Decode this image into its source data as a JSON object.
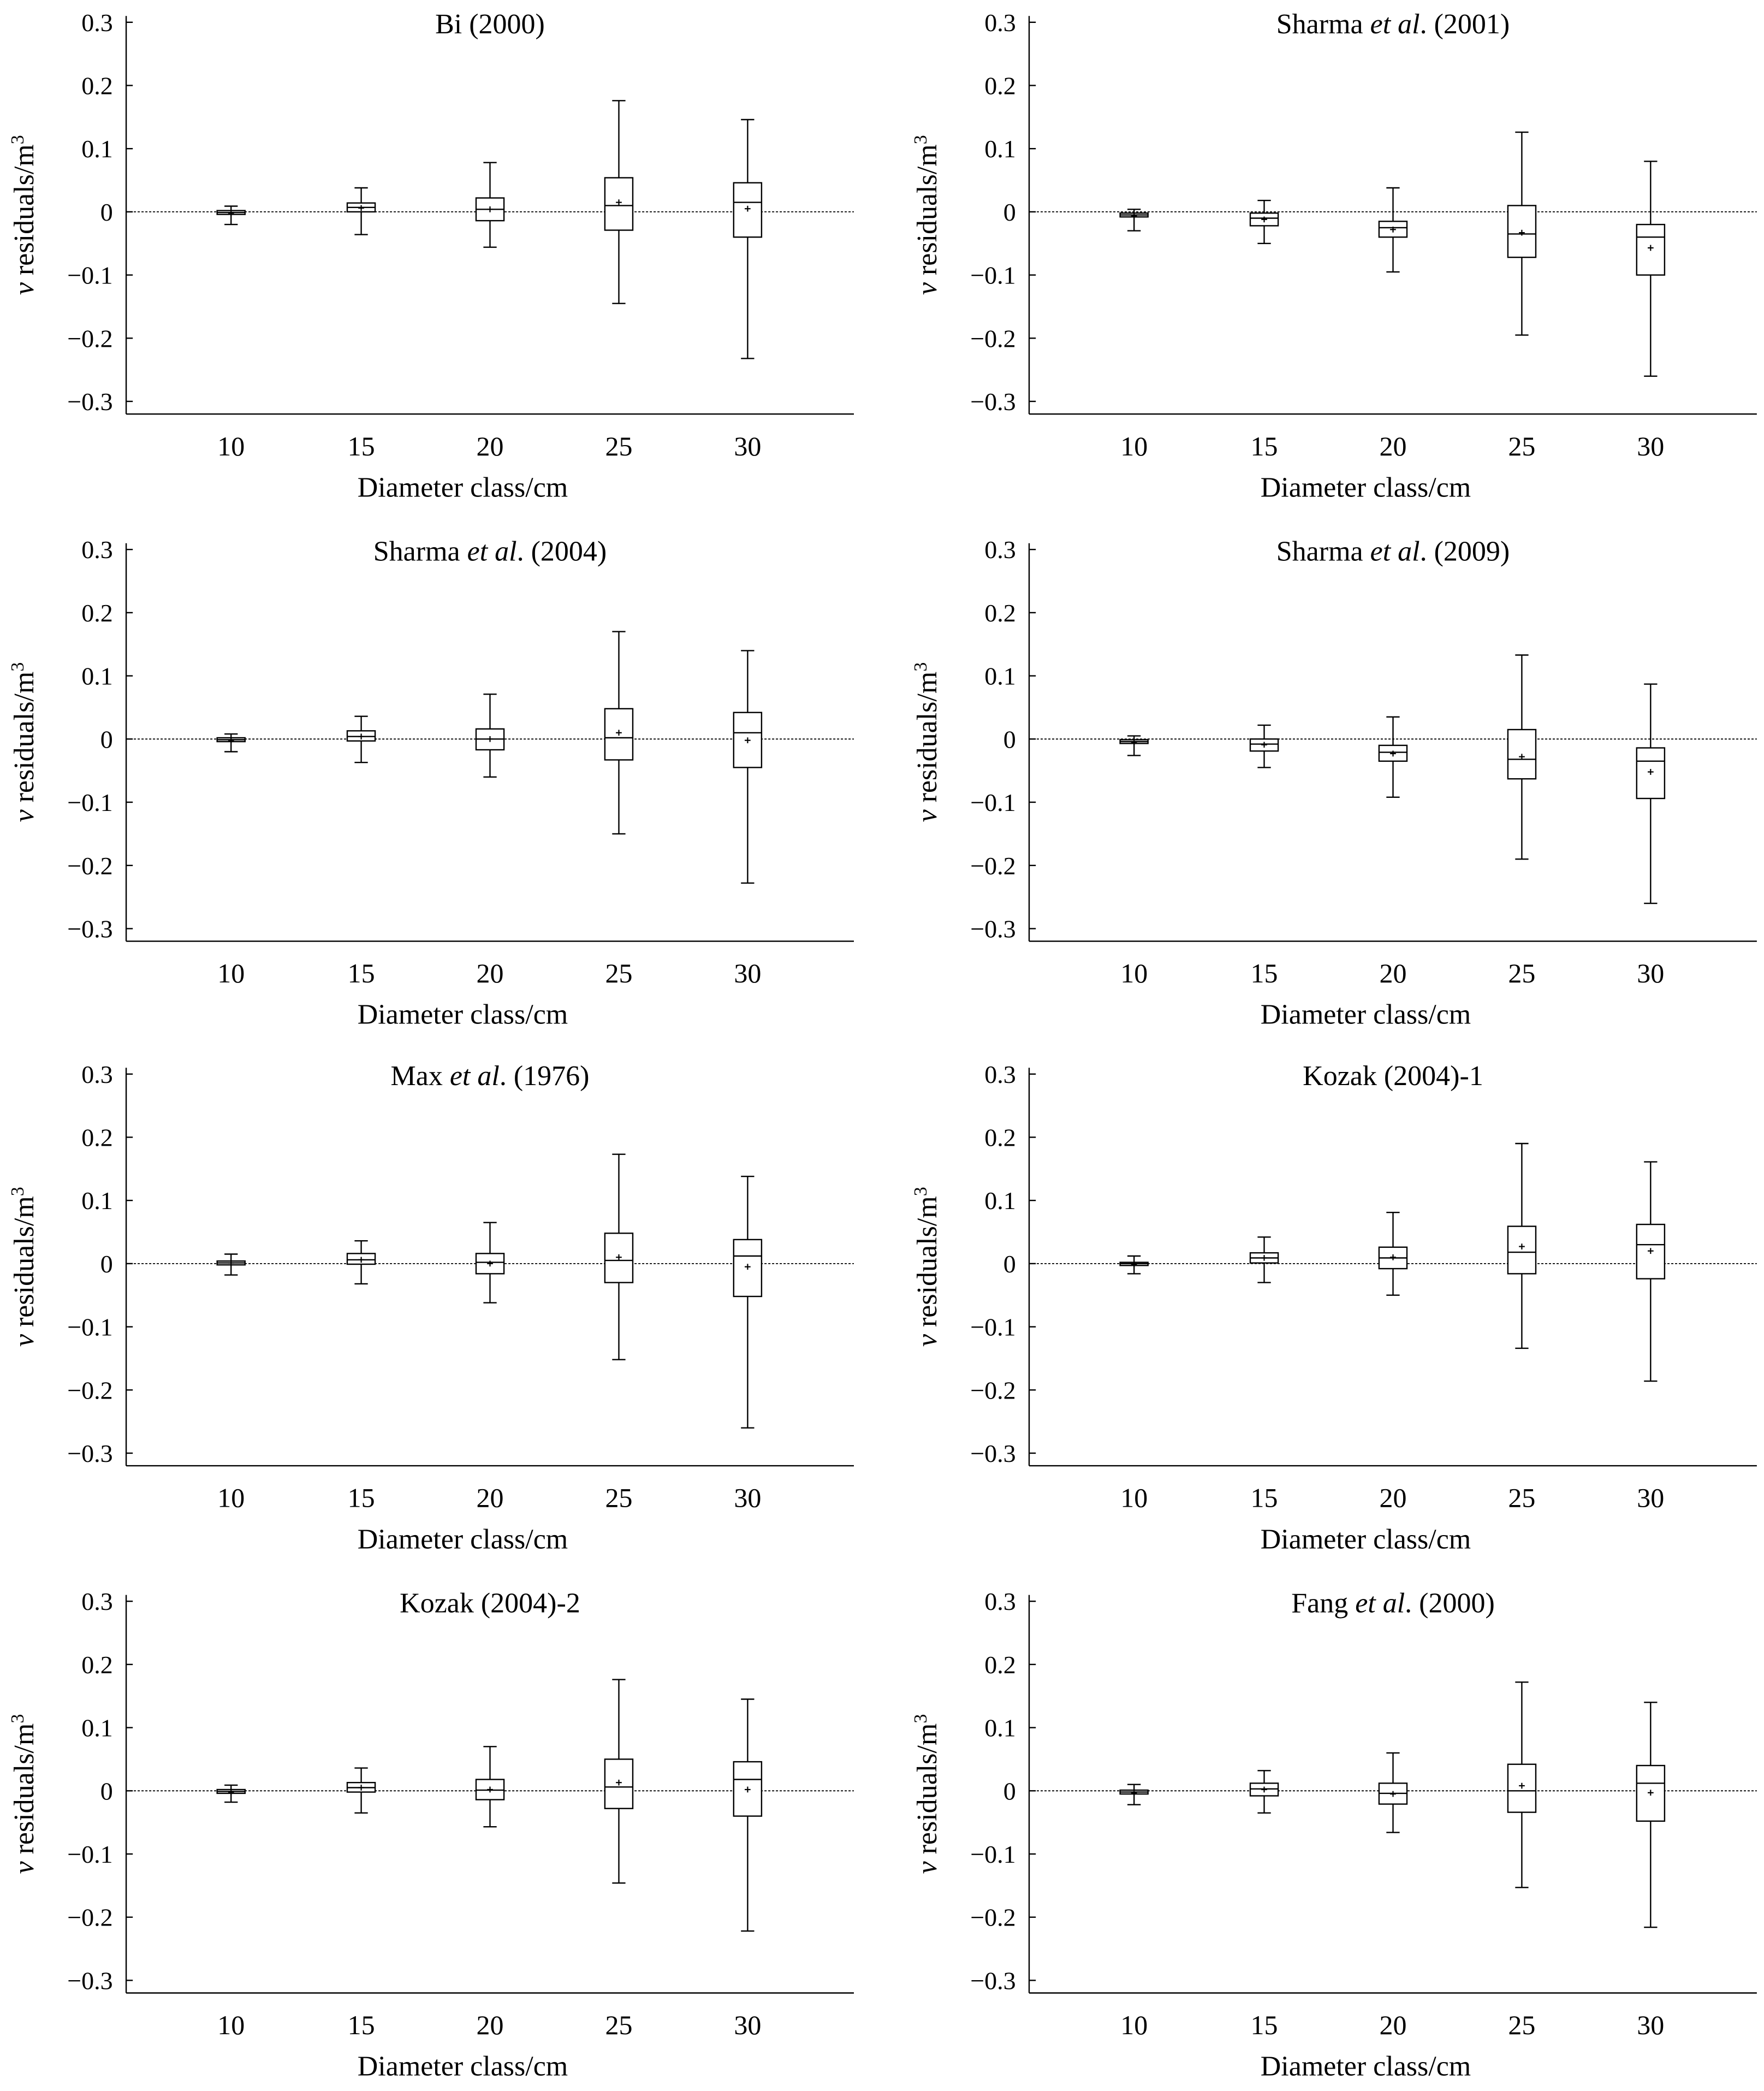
{
  "figure": {
    "x_axis_title": "Diameter class/cm",
    "y_axis_title_italic": "v",
    "y_axis_title_rest": " residuals/m",
    "y_axis_title_sup": "3"
  },
  "chart_data": [
    {
      "type": "box",
      "title_pre": "Bi (2000)",
      "title_ital": "",
      "title_post": "",
      "categories": [
        "10",
        "15",
        "20",
        "25",
        "30"
      ],
      "ylim": [
        -0.32,
        0.31
      ],
      "yticks": [
        0.3,
        0.2,
        0.1,
        0,
        -0.1,
        -0.2,
        -0.3
      ],
      "ytick_labels": [
        "0.3",
        "0.2",
        "0.1",
        "0",
        "−0.1",
        "−0.2",
        "−0.3"
      ],
      "xlabel": "Diameter class/cm",
      "reference_line": 0,
      "boxes": [
        {
          "category": "10",
          "min": -0.02,
          "q1": -0.004,
          "median": -0.001,
          "q3": 0.002,
          "max": 0.009,
          "mean": -0.002
        },
        {
          "category": "15",
          "min": -0.036,
          "q1": 0.0,
          "median": 0.007,
          "q3": 0.014,
          "max": 0.038,
          "mean": 0.006
        },
        {
          "category": "20",
          "min": -0.056,
          "q1": -0.014,
          "median": 0.004,
          "q3": 0.022,
          "max": 0.078,
          "mean": 0.004
        },
        {
          "category": "25",
          "min": -0.145,
          "q1": -0.029,
          "median": 0.01,
          "q3": 0.054,
          "max": 0.176,
          "mean": 0.015
        },
        {
          "category": "30",
          "min": -0.232,
          "q1": -0.04,
          "median": 0.015,
          "q3": 0.046,
          "max": 0.146,
          "mean": 0.005
        }
      ]
    },
    {
      "type": "box",
      "title_pre": "Sharma ",
      "title_ital": "et al",
      "title_post": ". (2001)",
      "categories": [
        "10",
        "15",
        "20",
        "25",
        "30"
      ],
      "ylim": [
        -0.32,
        0.31
      ],
      "yticks": [
        0.3,
        0.2,
        0.1,
        0,
        -0.1,
        -0.2,
        -0.3
      ],
      "ytick_labels": [
        "0.3",
        "0.2",
        "0.1",
        "0",
        "−0.1",
        "−0.2",
        "−0.3"
      ],
      "xlabel": "Diameter class/cm",
      "reference_line": 0,
      "boxes": [
        {
          "category": "10",
          "min": -0.03,
          "q1": -0.008,
          "median": -0.005,
          "q3": -0.002,
          "max": 0.004,
          "mean": -0.006
        },
        {
          "category": "15",
          "min": -0.05,
          "q1": -0.022,
          "median": -0.01,
          "q3": -0.002,
          "max": 0.018,
          "mean": -0.012
        },
        {
          "category": "20",
          "min": -0.095,
          "q1": -0.04,
          "median": -0.025,
          "q3": -0.015,
          "max": 0.038,
          "mean": -0.028
        },
        {
          "category": "25",
          "min": -0.195,
          "q1": -0.072,
          "median": -0.035,
          "q3": 0.01,
          "max": 0.126,
          "mean": -0.033
        },
        {
          "category": "30",
          "min": -0.26,
          "q1": -0.1,
          "median": -0.04,
          "q3": -0.02,
          "max": 0.08,
          "mean": -0.057
        }
      ]
    },
    {
      "type": "box",
      "title_pre": "Sharma ",
      "title_ital": "et al",
      "title_post": ". (2004)",
      "categories": [
        "10",
        "15",
        "20",
        "25",
        "30"
      ],
      "ylim": [
        -0.32,
        0.31
      ],
      "yticks": [
        0.3,
        0.2,
        0.1,
        0,
        -0.1,
        -0.2,
        -0.3
      ],
      "ytick_labels": [
        "0.3",
        "0.2",
        "0.1",
        "0",
        "−0.1",
        "−0.2",
        "−0.3"
      ],
      "xlabel": "Diameter class/cm",
      "reference_line": 0,
      "boxes": [
        {
          "category": "10",
          "min": -0.02,
          "q1": -0.004,
          "median": -0.001,
          "q3": 0.002,
          "max": 0.008,
          "mean": -0.002
        },
        {
          "category": "15",
          "min": -0.037,
          "q1": -0.003,
          "median": 0.004,
          "q3": 0.013,
          "max": 0.036,
          "mean": 0.004
        },
        {
          "category": "20",
          "min": -0.06,
          "q1": -0.017,
          "median": 0.0,
          "q3": 0.016,
          "max": 0.071,
          "mean": 0.0
        },
        {
          "category": "25",
          "min": -0.15,
          "q1": -0.033,
          "median": 0.002,
          "q3": 0.048,
          "max": 0.17,
          "mean": 0.01
        },
        {
          "category": "30",
          "min": -0.228,
          "q1": -0.045,
          "median": 0.01,
          "q3": 0.042,
          "max": 0.14,
          "mean": -0.002
        }
      ]
    },
    {
      "type": "box",
      "title_pre": "Sharma ",
      "title_ital": "et al",
      "title_post": ". (2009)",
      "categories": [
        "10",
        "15",
        "20",
        "25",
        "30"
      ],
      "ylim": [
        -0.32,
        0.31
      ],
      "yticks": [
        0.3,
        0.2,
        0.1,
        0,
        -0.1,
        -0.2,
        -0.3
      ],
      "ytick_labels": [
        "0.3",
        "0.2",
        "0.1",
        "0",
        "−0.1",
        "−0.2",
        "−0.3"
      ],
      "xlabel": "Diameter class/cm",
      "reference_line": 0,
      "boxes": [
        {
          "category": "10",
          "min": -0.026,
          "q1": -0.007,
          "median": -0.004,
          "q3": -0.001,
          "max": 0.005,
          "mean": -0.005
        },
        {
          "category": "15",
          "min": -0.045,
          "q1": -0.019,
          "median": -0.008,
          "q3": 0.0,
          "max": 0.022,
          "mean": -0.009
        },
        {
          "category": "20",
          "min": -0.092,
          "q1": -0.035,
          "median": -0.021,
          "q3": -0.01,
          "max": 0.035,
          "mean": -0.023
        },
        {
          "category": "25",
          "min": -0.19,
          "q1": -0.063,
          "median": -0.032,
          "q3": 0.015,
          "max": 0.133,
          "mean": -0.028
        },
        {
          "category": "30",
          "min": -0.26,
          "q1": -0.094,
          "median": -0.035,
          "q3": -0.014,
          "max": 0.087,
          "mean": -0.052
        }
      ]
    },
    {
      "type": "box",
      "title_pre": "Max ",
      "title_ital": "et al",
      "title_post": ". (1976)",
      "categories": [
        "10",
        "15",
        "20",
        "25",
        "30"
      ],
      "ylim": [
        -0.32,
        0.31
      ],
      "yticks": [
        0.3,
        0.2,
        0.1,
        0,
        -0.1,
        -0.2,
        -0.3
      ],
      "ytick_labels": [
        "0.3",
        "0.2",
        "0.1",
        "0",
        "−0.1",
        "−0.2",
        "−0.3"
      ],
      "xlabel": "Diameter class/cm",
      "reference_line": 0,
      "boxes": [
        {
          "category": "10",
          "min": -0.018,
          "q1": -0.002,
          "median": 0.001,
          "q3": 0.004,
          "max": 0.015,
          "mean": 0.001
        },
        {
          "category": "15",
          "min": -0.032,
          "q1": -0.001,
          "median": 0.006,
          "q3": 0.016,
          "max": 0.036,
          "mean": 0.006
        },
        {
          "category": "20",
          "min": -0.062,
          "q1": -0.016,
          "median": 0.002,
          "q3": 0.016,
          "max": 0.065,
          "mean": 0.0
        },
        {
          "category": "25",
          "min": -0.152,
          "q1": -0.03,
          "median": 0.005,
          "q3": 0.048,
          "max": 0.173,
          "mean": 0.01
        },
        {
          "category": "30",
          "min": -0.26,
          "q1": -0.052,
          "median": 0.012,
          "q3": 0.038,
          "max": 0.138,
          "mean": -0.005
        }
      ]
    },
    {
      "type": "box",
      "title_pre": "Kozak (2004)-1",
      "title_ital": "",
      "title_post": "",
      "categories": [
        "10",
        "15",
        "20",
        "25",
        "30"
      ],
      "ylim": [
        -0.32,
        0.31
      ],
      "yticks": [
        0.3,
        0.2,
        0.1,
        0,
        -0.1,
        -0.2,
        -0.3
      ],
      "ytick_labels": [
        "0.3",
        "0.2",
        "0.1",
        "0",
        "−0.1",
        "−0.2",
        "−0.3"
      ],
      "xlabel": "Diameter class/cm",
      "reference_line": 0,
      "boxes": [
        {
          "category": "10",
          "min": -0.016,
          "q1": -0.003,
          "median": 0.0,
          "q3": 0.002,
          "max": 0.012,
          "mean": -0.001
        },
        {
          "category": "15",
          "min": -0.03,
          "q1": 0.001,
          "median": 0.009,
          "q3": 0.017,
          "max": 0.042,
          "mean": 0.009
        },
        {
          "category": "20",
          "min": -0.05,
          "q1": -0.008,
          "median": 0.009,
          "q3": 0.026,
          "max": 0.081,
          "mean": 0.01
        },
        {
          "category": "25",
          "min": -0.134,
          "q1": -0.016,
          "median": 0.018,
          "q3": 0.059,
          "max": 0.19,
          "mean": 0.027
        },
        {
          "category": "30",
          "min": -0.186,
          "q1": -0.024,
          "median": 0.03,
          "q3": 0.062,
          "max": 0.161,
          "mean": 0.02
        }
      ]
    },
    {
      "type": "box",
      "title_pre": "Kozak (2004)-2",
      "title_ital": "",
      "title_post": "",
      "categories": [
        "10",
        "15",
        "20",
        "25",
        "30"
      ],
      "ylim": [
        -0.32,
        0.31
      ],
      "yticks": [
        0.3,
        0.2,
        0.1,
        0,
        -0.1,
        -0.2,
        -0.3
      ],
      "ytick_labels": [
        "0.3",
        "0.2",
        "0.1",
        "0",
        "−0.1",
        "−0.2",
        "−0.3"
      ],
      "xlabel": "Diameter class/cm",
      "reference_line": 0,
      "boxes": [
        {
          "category": "10",
          "min": -0.018,
          "q1": -0.004,
          "median": -0.001,
          "q3": 0.002,
          "max": 0.009,
          "mean": -0.002
        },
        {
          "category": "15",
          "min": -0.035,
          "q1": -0.002,
          "median": 0.005,
          "q3": 0.013,
          "max": 0.036,
          "mean": 0.005
        },
        {
          "category": "20",
          "min": -0.057,
          "q1": -0.014,
          "median": 0.001,
          "q3": 0.018,
          "max": 0.07,
          "mean": 0.002
        },
        {
          "category": "25",
          "min": -0.146,
          "q1": -0.028,
          "median": 0.006,
          "q3": 0.05,
          "max": 0.176,
          "mean": 0.013
        },
        {
          "category": "30",
          "min": -0.222,
          "q1": -0.04,
          "median": 0.018,
          "q3": 0.046,
          "max": 0.145,
          "mean": 0.002
        }
      ]
    },
    {
      "type": "box",
      "title_pre": "Fang ",
      "title_ital": "et al",
      "title_post": ". (2000)",
      "categories": [
        "10",
        "15",
        "20",
        "25",
        "30"
      ],
      "ylim": [
        -0.32,
        0.31
      ],
      "yticks": [
        0.3,
        0.2,
        0.1,
        0,
        -0.1,
        -0.2,
        -0.3
      ],
      "ytick_labels": [
        "0.3",
        "0.2",
        "0.1",
        "0",
        "−0.1",
        "−0.2",
        "−0.3"
      ],
      "xlabel": "Diameter class/cm",
      "reference_line": 0,
      "boxes": [
        {
          "category": "10",
          "min": -0.022,
          "q1": -0.005,
          "median": -0.002,
          "q3": 0.001,
          "max": 0.01,
          "mean": -0.003
        },
        {
          "category": "15",
          "min": -0.035,
          "q1": -0.008,
          "median": 0.003,
          "q3": 0.012,
          "max": 0.032,
          "mean": 0.002
        },
        {
          "category": "20",
          "min": -0.066,
          "q1": -0.021,
          "median": -0.004,
          "q3": 0.012,
          "max": 0.06,
          "mean": -0.005
        },
        {
          "category": "25",
          "min": -0.153,
          "q1": -0.034,
          "median": 0.0,
          "q3": 0.042,
          "max": 0.172,
          "mean": 0.008
        },
        {
          "category": "30",
          "min": -0.216,
          "q1": -0.048,
          "median": 0.012,
          "q3": 0.04,
          "max": 0.14,
          "mean": -0.003
        }
      ]
    }
  ]
}
